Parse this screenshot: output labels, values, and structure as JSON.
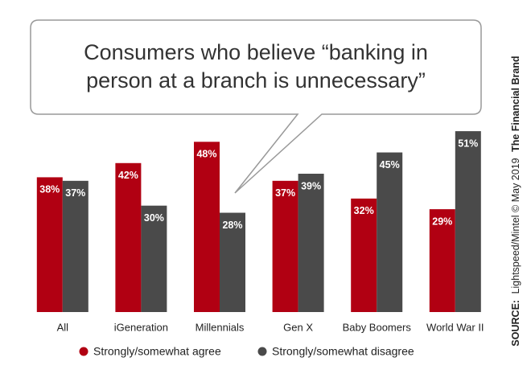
{
  "chart_data": {
    "type": "bar",
    "title": "Consumers who believe “banking in person at a branch is unnecessary”",
    "categories": [
      "All",
      "iGeneration",
      "Millennials",
      "Gen X",
      "Baby Boomers",
      "World War II"
    ],
    "series": [
      {
        "name": "Strongly/somewhat agree",
        "color": "#b10012",
        "values": [
          38,
          42,
          48,
          37,
          32,
          29
        ],
        "value_labels": [
          "38%",
          "42%",
          "48%",
          "37%",
          "32%",
          "29%"
        ]
      },
      {
        "name": "Strongly/somewhat disagree",
        "color": "#4a4a4a",
        "values": [
          37,
          30,
          28,
          39,
          45,
          51
        ],
        "value_labels": [
          "37%",
          "30%",
          "28%",
          "39%",
          "45%",
          "51%"
        ]
      }
    ],
    "source_label": "SOURCE:",
    "source": "Lightspeed/Mintel © May 2019",
    "brand": "The Financial Brand"
  }
}
